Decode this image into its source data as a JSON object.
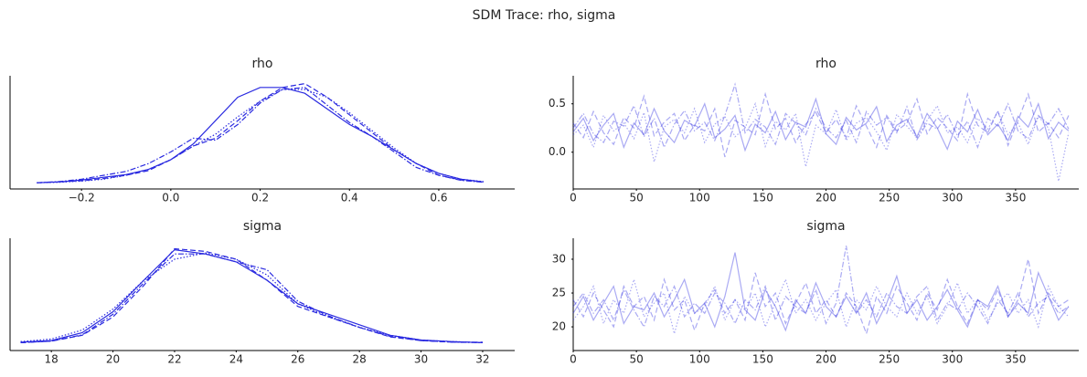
{
  "title": "SDM Trace: rho, sigma",
  "chart_data": [
    {
      "type": "line",
      "title": "rho",
      "color": "#2a2ae0",
      "opacity": 1,
      "x": [
        -0.3,
        -0.25,
        -0.2,
        -0.15,
        -0.1,
        -0.05,
        0,
        0.05,
        0.1,
        0.15,
        0.2,
        0.25,
        0.3,
        0.35,
        0.4,
        0.45,
        0.5,
        0.55,
        0.6,
        0.65,
        0.7
      ],
      "series": [
        {
          "linestyle": "solid",
          "values": [
            0.01,
            0.03,
            0.08,
            0.15,
            0.22,
            0.35,
            0.6,
            1.0,
            1.6,
            2.2,
            2.45,
            2.45,
            2.3,
            1.9,
            1.5,
            1.2,
            0.85,
            0.5,
            0.25,
            0.1,
            0.03
          ]
        },
        {
          "linestyle": "dashed",
          "values": [
            0.01,
            0.03,
            0.06,
            0.12,
            0.2,
            0.32,
            0.6,
            0.95,
            1.15,
            1.6,
            2.1,
            2.45,
            2.55,
            2.2,
            1.75,
            1.3,
            0.85,
            0.5,
            0.2,
            0.08,
            0.03
          ]
        },
        {
          "linestyle": "dotted",
          "values": [
            0.01,
            0.02,
            0.05,
            0.1,
            0.2,
            0.35,
            0.6,
            0.95,
            1.25,
            1.7,
            2.1,
            2.4,
            2.4,
            2.2,
            1.8,
            1.35,
            0.9,
            0.5,
            0.25,
            0.1,
            0.04
          ]
        },
        {
          "linestyle": "dashdot",
          "values": [
            0.01,
            0.04,
            0.1,
            0.2,
            0.3,
            0.5,
            0.8,
            1.15,
            1.1,
            1.5,
            2.05,
            2.4,
            2.45,
            2.0,
            1.55,
            1.2,
            0.8,
            0.4,
            0.2,
            0.07,
            0.02
          ]
        }
      ],
      "xlim": [
        -0.36,
        0.77
      ],
      "ylim": [
        -0.15,
        2.75
      ],
      "xticks": [
        {
          "value": -0.2,
          "label": "−0.2"
        },
        {
          "value": 0,
          "label": "0.0"
        },
        0.2,
        0.4,
        0.6
      ]
    },
    {
      "type": "line",
      "title": "rho",
      "color": "#2a2ae0",
      "opacity": 0.4,
      "x": [
        0,
        8,
        16,
        24,
        32,
        40,
        48,
        56,
        64,
        72,
        80,
        88,
        96,
        104,
        112,
        120,
        128,
        136,
        144,
        152,
        160,
        168,
        176,
        184,
        192,
        200,
        208,
        216,
        224,
        232,
        240,
        248,
        256,
        264,
        272,
        280,
        288,
        296,
        304,
        312,
        320,
        328,
        336,
        344,
        352,
        360,
        368,
        376,
        384,
        392
      ],
      "series": [
        {
          "linestyle": "solid",
          "values": [
            0.21,
            0.35,
            0.12,
            0.28,
            0.4,
            0.05,
            0.3,
            0.18,
            0.45,
            0.22,
            0.1,
            0.33,
            0.27,
            0.5,
            0.15,
            0.24,
            0.38,
            0.02,
            0.29,
            0.2,
            0.42,
            0.13,
            0.31,
            0.26,
            0.55,
            0.19,
            0.08,
            0.36,
            0.23,
            0.3,
            0.47,
            0.11,
            0.28,
            0.34,
            0.16,
            0.4,
            0.25,
            0.03,
            0.32,
            0.21,
            0.44,
            0.18,
            0.29,
            0.12,
            0.37,
            0.26,
            0.5,
            0.14,
            0.31,
            0.22
          ]
        },
        {
          "linestyle": "dashed",
          "values": [
            0.3,
            0.15,
            0.42,
            0.2,
            0.08,
            0.36,
            0.25,
            0.58,
            0.17,
            0.31,
            0.4,
            0.12,
            0.28,
            0.22,
            0.45,
            -0.05,
            0.33,
            0.26,
            0.18,
            0.6,
            0.24,
            0.35,
            0.1,
            0.29,
            0.41,
            0.2,
            0.34,
            0.15,
            0.48,
            0.27,
            0.05,
            0.38,
            0.22,
            0.3,
            0.55,
            0.19,
            0.36,
            0.25,
            0.12,
            0.6,
            0.28,
            0.2,
            0.43,
            0.07,
            0.33,
            0.6,
            0.21,
            0.3,
            0.15,
            0.38
          ]
        },
        {
          "linestyle": "dotted",
          "values": [
            0.18,
            0.28,
            0.05,
            0.38,
            0.22,
            0.3,
            0.14,
            0.41,
            -0.1,
            0.26,
            0.34,
            0.2,
            0.45,
            0.1,
            0.29,
            0.37,
            0.16,
            0.25,
            0.5,
            0.06,
            0.32,
            0.23,
            0.4,
            -0.15,
            0.28,
            0.19,
            0.44,
            0.12,
            0.3,
            0.36,
            0.21,
            0.02,
            0.39,
            0.27,
            0.15,
            0.33,
            0.48,
            0.2,
            0.26,
            0.1,
            0.35,
            0.24,
            0.42,
            0.18,
            0.3,
            0.08,
            0.37,
            0.25,
            -0.3,
            0.2
          ]
        },
        {
          "linestyle": "dashdot",
          "values": [
            0.25,
            0.4,
            0.19,
            0.1,
            0.32,
            0.27,
            0.48,
            0.16,
            0.35,
            0.05,
            0.29,
            0.43,
            0.22,
            0.31,
            0.12,
            0.38,
            0.7,
            0.2,
            0.34,
            0.26,
            0.08,
            0.4,
            0.3,
            0.18,
            0.45,
            0.25,
            0.15,
            0.33,
            0.1,
            0.42,
            0.28,
            0.36,
            0.2,
            0.47,
            0.13,
            0.3,
            0.24,
            0.39,
            0.17,
            0.32,
            0.05,
            0.35,
            0.27,
            0.5,
            0.22,
            0.14,
            0.38,
            0.29,
            0.45,
            0.24
          ]
        }
      ],
      "xlim": [
        0,
        400
      ],
      "ylim": [
        -0.38,
        0.79
      ],
      "xticks": [
        0,
        50,
        100,
        150,
        200,
        250,
        300,
        350
      ],
      "yticks": [
        {
          "value": 0,
          "label": "0.0"
        },
        0.5
      ]
    },
    {
      "type": "line",
      "title": "sigma",
      "color": "#2a2ae0",
      "opacity": 1,
      "x": [
        17,
        18,
        19,
        20,
        21,
        22,
        23,
        24,
        25,
        26,
        27,
        28,
        29,
        30,
        31,
        32
      ],
      "series": [
        {
          "linestyle": "solid",
          "values": [
            0.002,
            0.005,
            0.02,
            0.06,
            0.12,
            0.178,
            0.17,
            0.155,
            0.12,
            0.075,
            0.055,
            0.035,
            0.015,
            0.006,
            0.003,
            0.001
          ]
        },
        {
          "linestyle": "dashed",
          "values": [
            0.001,
            0.004,
            0.015,
            0.05,
            0.11,
            0.18,
            0.175,
            0.16,
            0.12,
            0.07,
            0.05,
            0.03,
            0.012,
            0.005,
            0.002,
            0.002
          ]
        },
        {
          "linestyle": "dotted",
          "values": [
            0.003,
            0.008,
            0.025,
            0.065,
            0.12,
            0.16,
            0.172,
            0.16,
            0.13,
            0.075,
            0.05,
            0.03,
            0.015,
            0.006,
            0.003,
            0.001
          ]
        },
        {
          "linestyle": "dashdot",
          "values": [
            0.001,
            0.004,
            0.016,
            0.055,
            0.115,
            0.17,
            0.17,
            0.155,
            0.14,
            0.08,
            0.052,
            0.03,
            0.013,
            0.005,
            0.002,
            0.001
          ]
        }
      ],
      "xlim": [
        16.66,
        33.04
      ],
      "ylim": [
        -0.014,
        0.2
      ],
      "xticks": [
        18,
        20,
        22,
        24,
        26,
        28,
        30,
        32
      ]
    },
    {
      "type": "line",
      "title": "sigma",
      "color": "#2a2ae0",
      "opacity": 0.4,
      "x": [
        0,
        8,
        16,
        24,
        32,
        40,
        48,
        56,
        64,
        72,
        80,
        88,
        96,
        104,
        112,
        120,
        128,
        136,
        144,
        152,
        160,
        168,
        176,
        184,
        192,
        200,
        208,
        216,
        224,
        232,
        240,
        248,
        256,
        264,
        272,
        280,
        288,
        296,
        304,
        312,
        320,
        328,
        336,
        344,
        352,
        360,
        368,
        376,
        384,
        392
      ],
      "series": [
        {
          "linestyle": "solid",
          "values": [
            22,
            24.5,
            21,
            23.5,
            26,
            20.5,
            23,
            22.5,
            25,
            21.5,
            24,
            27,
            22,
            23.5,
            20,
            24.5,
            31,
            22.5,
            21,
            25.5,
            23,
            19.5,
            24,
            22,
            26.5,
            23,
            21.5,
            24.5,
            22,
            25,
            20.5,
            23.5,
            27.5,
            22,
            24,
            21,
            23,
            25.5,
            22.5,
            20,
            24,
            23,
            26,
            21.5,
            23.5,
            22,
            28,
            24.5,
            21,
            23
          ]
        },
        {
          "linestyle": "dashed",
          "values": [
            24,
            21.5,
            25,
            22.5,
            20,
            26,
            23,
            24.5,
            21,
            27,
            22.5,
            24,
            19.5,
            23.5,
            25.5,
            22,
            24,
            21,
            28,
            23,
            25,
            20.5,
            23.5,
            26.5,
            22,
            24,
            21.5,
            25,
            23,
            19,
            24.5,
            22,
            26,
            23.5,
            21,
            25,
            22.5,
            27,
            23,
            20.5,
            24,
            22.5,
            25.5,
            21.5,
            24,
            30,
            22,
            25,
            23,
            24
          ]
        },
        {
          "linestyle": "dotted",
          "values": [
            21,
            23,
            26,
            20.5,
            24,
            22,
            27,
            21.5,
            23.5,
            25,
            19,
            24.5,
            22,
            23,
            26,
            21,
            24,
            22.5,
            25,
            20,
            23.5,
            27,
            22,
            24,
            21,
            23.5,
            25.5,
            20,
            24,
            22.5,
            26,
            23,
            21.5,
            25,
            22,
            24.5,
            20.5,
            23,
            26.5,
            22,
            24,
            21,
            23.5,
            25,
            22,
            24,
            20,
            26,
            23,
            21.5
          ]
        },
        {
          "linestyle": "dashdot",
          "values": [
            23,
            25,
            22,
            24,
            21,
            25.5,
            22.5,
            20,
            24.5,
            23,
            26,
            21.5,
            23.5,
            22,
            25,
            23.5,
            20.5,
            24,
            22.5,
            26,
            21,
            24.5,
            23,
            22,
            25.5,
            20.5,
            23.5,
            32,
            22,
            24,
            21.5,
            25,
            23,
            22,
            24.5,
            26,
            21,
            23.5,
            22.5,
            25,
            23,
            20.5,
            24,
            22,
            25,
            21.5,
            23.5,
            24.5,
            22,
            23
          ]
        }
      ],
      "xlim": [
        0,
        400
      ],
      "ylim": [
        16.5,
        33.1
      ],
      "xticks": [
        0,
        50,
        100,
        150,
        200,
        250,
        300,
        350
      ],
      "yticks": [
        20,
        25,
        30
      ]
    }
  ]
}
